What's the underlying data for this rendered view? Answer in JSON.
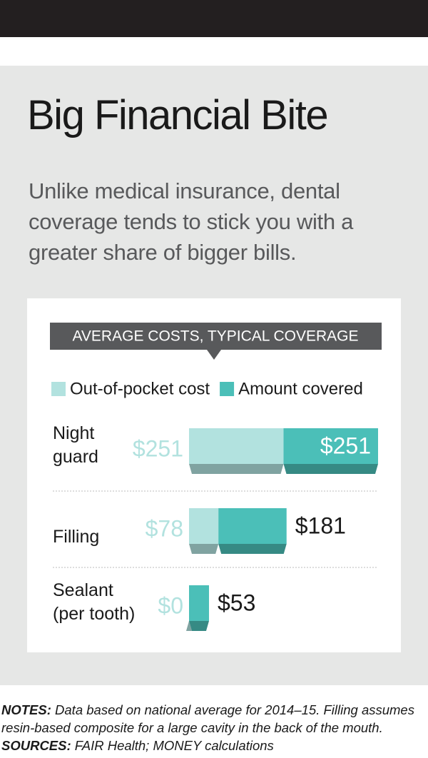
{
  "chart_data": {
    "type": "stacked-bar",
    "title": "Big Financial Bite",
    "subtitle": "Unlike medical insurance, dental coverage tends to stick you with a greater share of bigger bills.",
    "header": "AVERAGE COSTS, TYPICAL COVERAGE",
    "categories": [
      "Night guard",
      "Filling",
      "Sealant (per tooth)"
    ],
    "series": [
      {
        "name": "Out-of-pocket cost",
        "color": "#b2e2df",
        "values": [
          251,
          78,
          0
        ],
        "value_labels": [
          "$251",
          "$78",
          "$0"
        ]
      },
      {
        "name": "Amount covered",
        "color": "#4bbfb8",
        "values": [
          251,
          181,
          53
        ],
        "value_labels": [
          "$251",
          "$181",
          "$53"
        ]
      }
    ],
    "notes_label": "NOTES:",
    "notes": "Data based on national average for 2014–15. Filling assumes resin-based composite for a large cavity in the back of the mouth.",
    "sources_label": "SOURCES:",
    "sources": "FAIR Health; MONEY calculations"
  }
}
